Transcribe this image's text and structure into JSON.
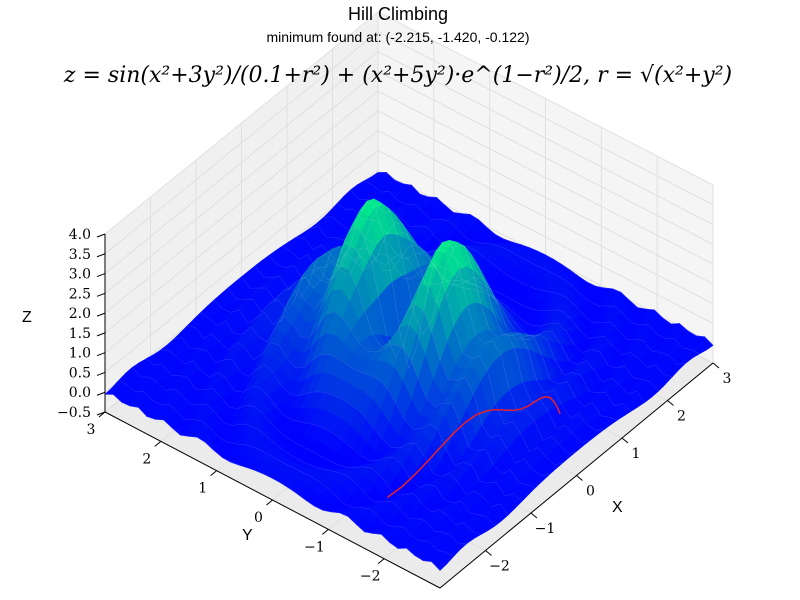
{
  "chart_data": {
    "type": "surface3d",
    "title": "Hill Climbing",
    "subtitle": "minimum found at: (-2.215, -1.420, -0.122)",
    "equation": "z = sin(x²+3y²)/(0.1+r²) + (x²+5y²)·e^(1−r²)/2, r = √(x²+y²)",
    "xlabel": "X",
    "ylabel": "Y",
    "zlabel": "Z",
    "x_ticks": [
      "−2",
      "−1",
      "0",
      "1",
      "2",
      "3"
    ],
    "y_ticks": [
      "−2",
      "−1",
      "0",
      "1",
      "2",
      "3"
    ],
    "z_ticks": [
      "−0.5",
      "0.0",
      "0.5",
      "1.0",
      "1.5",
      "2.0",
      "2.5",
      "3.0",
      "3.5",
      "4.0"
    ],
    "xlim": [
      -3,
      3
    ],
    "ylim": [
      -3,
      3
    ],
    "zlim": [
      -0.5,
      4.0
    ],
    "colormap_low": "#0000ff",
    "colormap_high": "#00ff80",
    "path_color": "#e8202a",
    "minimum": {
      "x": -2.215,
      "y": -1.42,
      "z": -0.122
    }
  }
}
